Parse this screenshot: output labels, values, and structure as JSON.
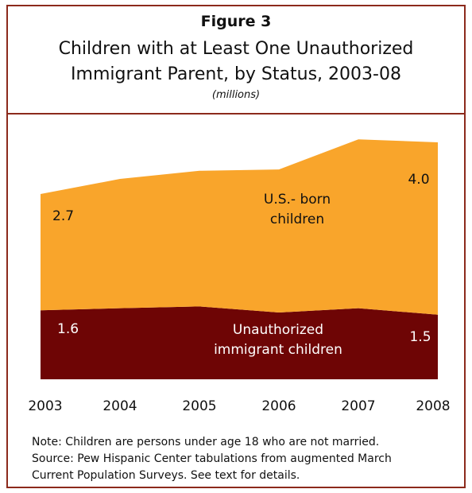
{
  "header": {
    "figure_label": "Figure 3",
    "title_line1": "Children with at Least One Unauthorized",
    "title_line2": "Immigrant Parent, by Status, 2003-08",
    "unit_label": "(millions)"
  },
  "chart_data": {
    "type": "area",
    "stacked": true,
    "x": [
      "2003",
      "2004",
      "2005",
      "2006",
      "2007",
      "2008"
    ],
    "ylim": [
      0,
      5.5
    ],
    "series": [
      {
        "name": "Unauthorized immigrant children",
        "values": [
          1.6,
          1.65,
          1.69,
          1.55,
          1.65,
          1.5
        ],
        "color": "#6e0505"
      },
      {
        "name": "U.S.- born children",
        "values": [
          2.7,
          3.0,
          3.15,
          3.32,
          3.92,
          4.0
        ],
        "color": "#f9a52b"
      }
    ],
    "series_labels": {
      "unauthorized_line1": "Unauthorized",
      "unauthorized_line2": "immigrant children",
      "usborn_line1": "U.S.- born",
      "usborn_line2": "children"
    },
    "data_labels": {
      "usborn_start": "2.7",
      "usborn_end": "4.0",
      "unauthorized_start": "1.6",
      "unauthorized_end": "1.5"
    },
    "grid": false,
    "legend": "none"
  },
  "footer": {
    "note": "Note: Children are persons under age 18 who are not married.",
    "source_line1": "Source:  Pew Hispanic Center tabulations from augmented March",
    "source_line2": "Current Population Surveys.  See text for details."
  }
}
